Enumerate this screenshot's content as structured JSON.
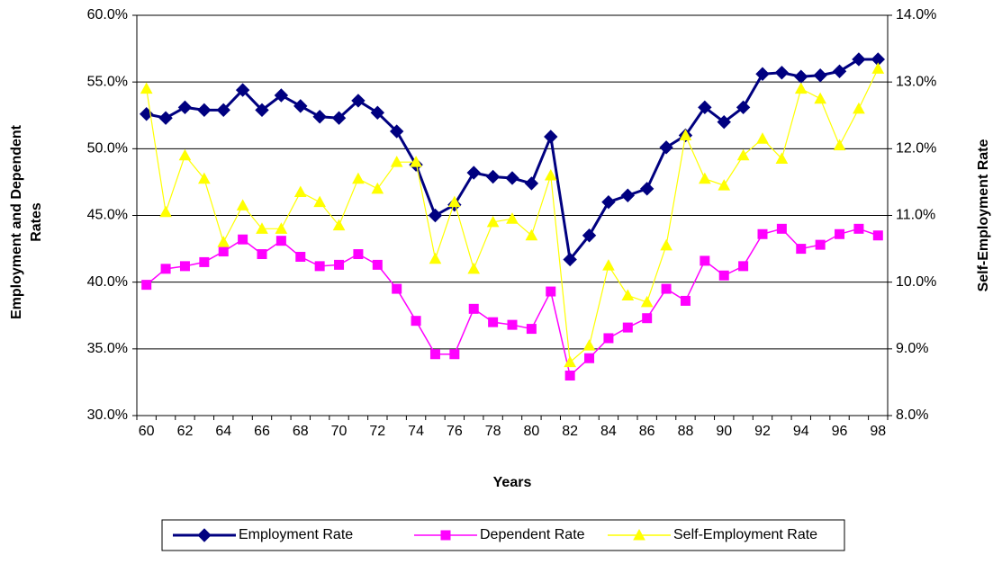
{
  "chart_data": {
    "type": "line",
    "x_label": "Years",
    "y_label": "Employment and Dependent Rates",
    "y2_label": "Self-Employment Rate",
    "categories": [
      "60",
      null,
      "62",
      null,
      "64",
      null,
      "66",
      null,
      "68",
      null,
      "70",
      null,
      "72",
      null,
      "74",
      null,
      "76",
      null,
      "78",
      null,
      "80",
      null,
      "82",
      null,
      "84",
      null,
      "86",
      null,
      "88",
      null,
      "90",
      null,
      "92",
      null,
      "94",
      null,
      "96",
      null,
      "98"
    ],
    "ylim": [
      30,
      60
    ],
    "yticks": [
      {
        "value": 30,
        "label": "30.0%"
      },
      {
        "value": 35,
        "label": "35.0%"
      },
      {
        "value": 40,
        "label": "40.0%"
      },
      {
        "value": 45,
        "label": "45.0%"
      },
      {
        "value": 50,
        "label": "50.0%"
      },
      {
        "value": 55,
        "label": "55.0%"
      },
      {
        "value": 60,
        "label": "60.0%"
      }
    ],
    "y2lim": [
      8,
      14
    ],
    "y2ticks": [
      {
        "value": 8,
        "label": "8.0%"
      },
      {
        "value": 9,
        "label": "9.0%"
      },
      {
        "value": 10,
        "label": "10.0%"
      },
      {
        "value": 11,
        "label": "11.0%"
      },
      {
        "value": 12,
        "label": "12.0%"
      },
      {
        "value": 13,
        "label": "13.0%"
      },
      {
        "value": 14,
        "label": "14.0%"
      }
    ],
    "grid": true,
    "legend": "bottom",
    "series": [
      {
        "name": "Employment Rate",
        "color": "#000080",
        "marker": "diamond",
        "values": [
          52.6,
          52.3,
          53.1,
          52.9,
          52.9,
          54.4,
          52.9,
          54.0,
          53.2,
          52.4,
          52.3,
          53.6,
          52.7,
          51.3,
          48.8,
          45.0,
          45.8,
          48.2,
          47.9,
          47.8,
          47.4,
          50.9,
          41.7,
          43.5,
          46.0,
          46.5,
          47.0,
          50.1,
          51.0,
          53.1,
          52.0,
          53.1,
          55.6,
          55.7,
          55.4,
          55.5,
          55.8,
          56.7,
          56.7
        ]
      },
      {
        "name": "Dependent Rate",
        "color": "#ff00ff",
        "marker": "square",
        "values": [
          39.8,
          41.0,
          41.2,
          41.5,
          42.3,
          43.2,
          42.1,
          43.1,
          41.9,
          41.2,
          41.3,
          42.1,
          41.3,
          39.5,
          37.1,
          34.6,
          34.6,
          38.0,
          37.0,
          36.8,
          36.5,
          39.3,
          33.0,
          34.3,
          35.8,
          36.6,
          37.3,
          39.5,
          38.6,
          41.6,
          40.5,
          41.2,
          43.6,
          44.0,
          42.5,
          42.8,
          43.6,
          44.0,
          43.5
        ]
      },
      {
        "name": "Self-Employment Rate",
        "color": "#ffff00",
        "marker": "triangle",
        "axis": "y2",
        "values": [
          12.9,
          11.05,
          11.9,
          11.55,
          10.6,
          11.15,
          10.8,
          10.8,
          11.35,
          11.2,
          10.85,
          11.55,
          11.4,
          11.8,
          11.8,
          10.35,
          11.2,
          10.2,
          10.9,
          10.95,
          10.7,
          11.6,
          8.8,
          9.05,
          10.25,
          9.8,
          9.7,
          10.55,
          12.2,
          11.55,
          11.45,
          11.9,
          12.15,
          11.85,
          12.9,
          12.75,
          12.05,
          12.6,
          13.2
        ]
      }
    ]
  }
}
